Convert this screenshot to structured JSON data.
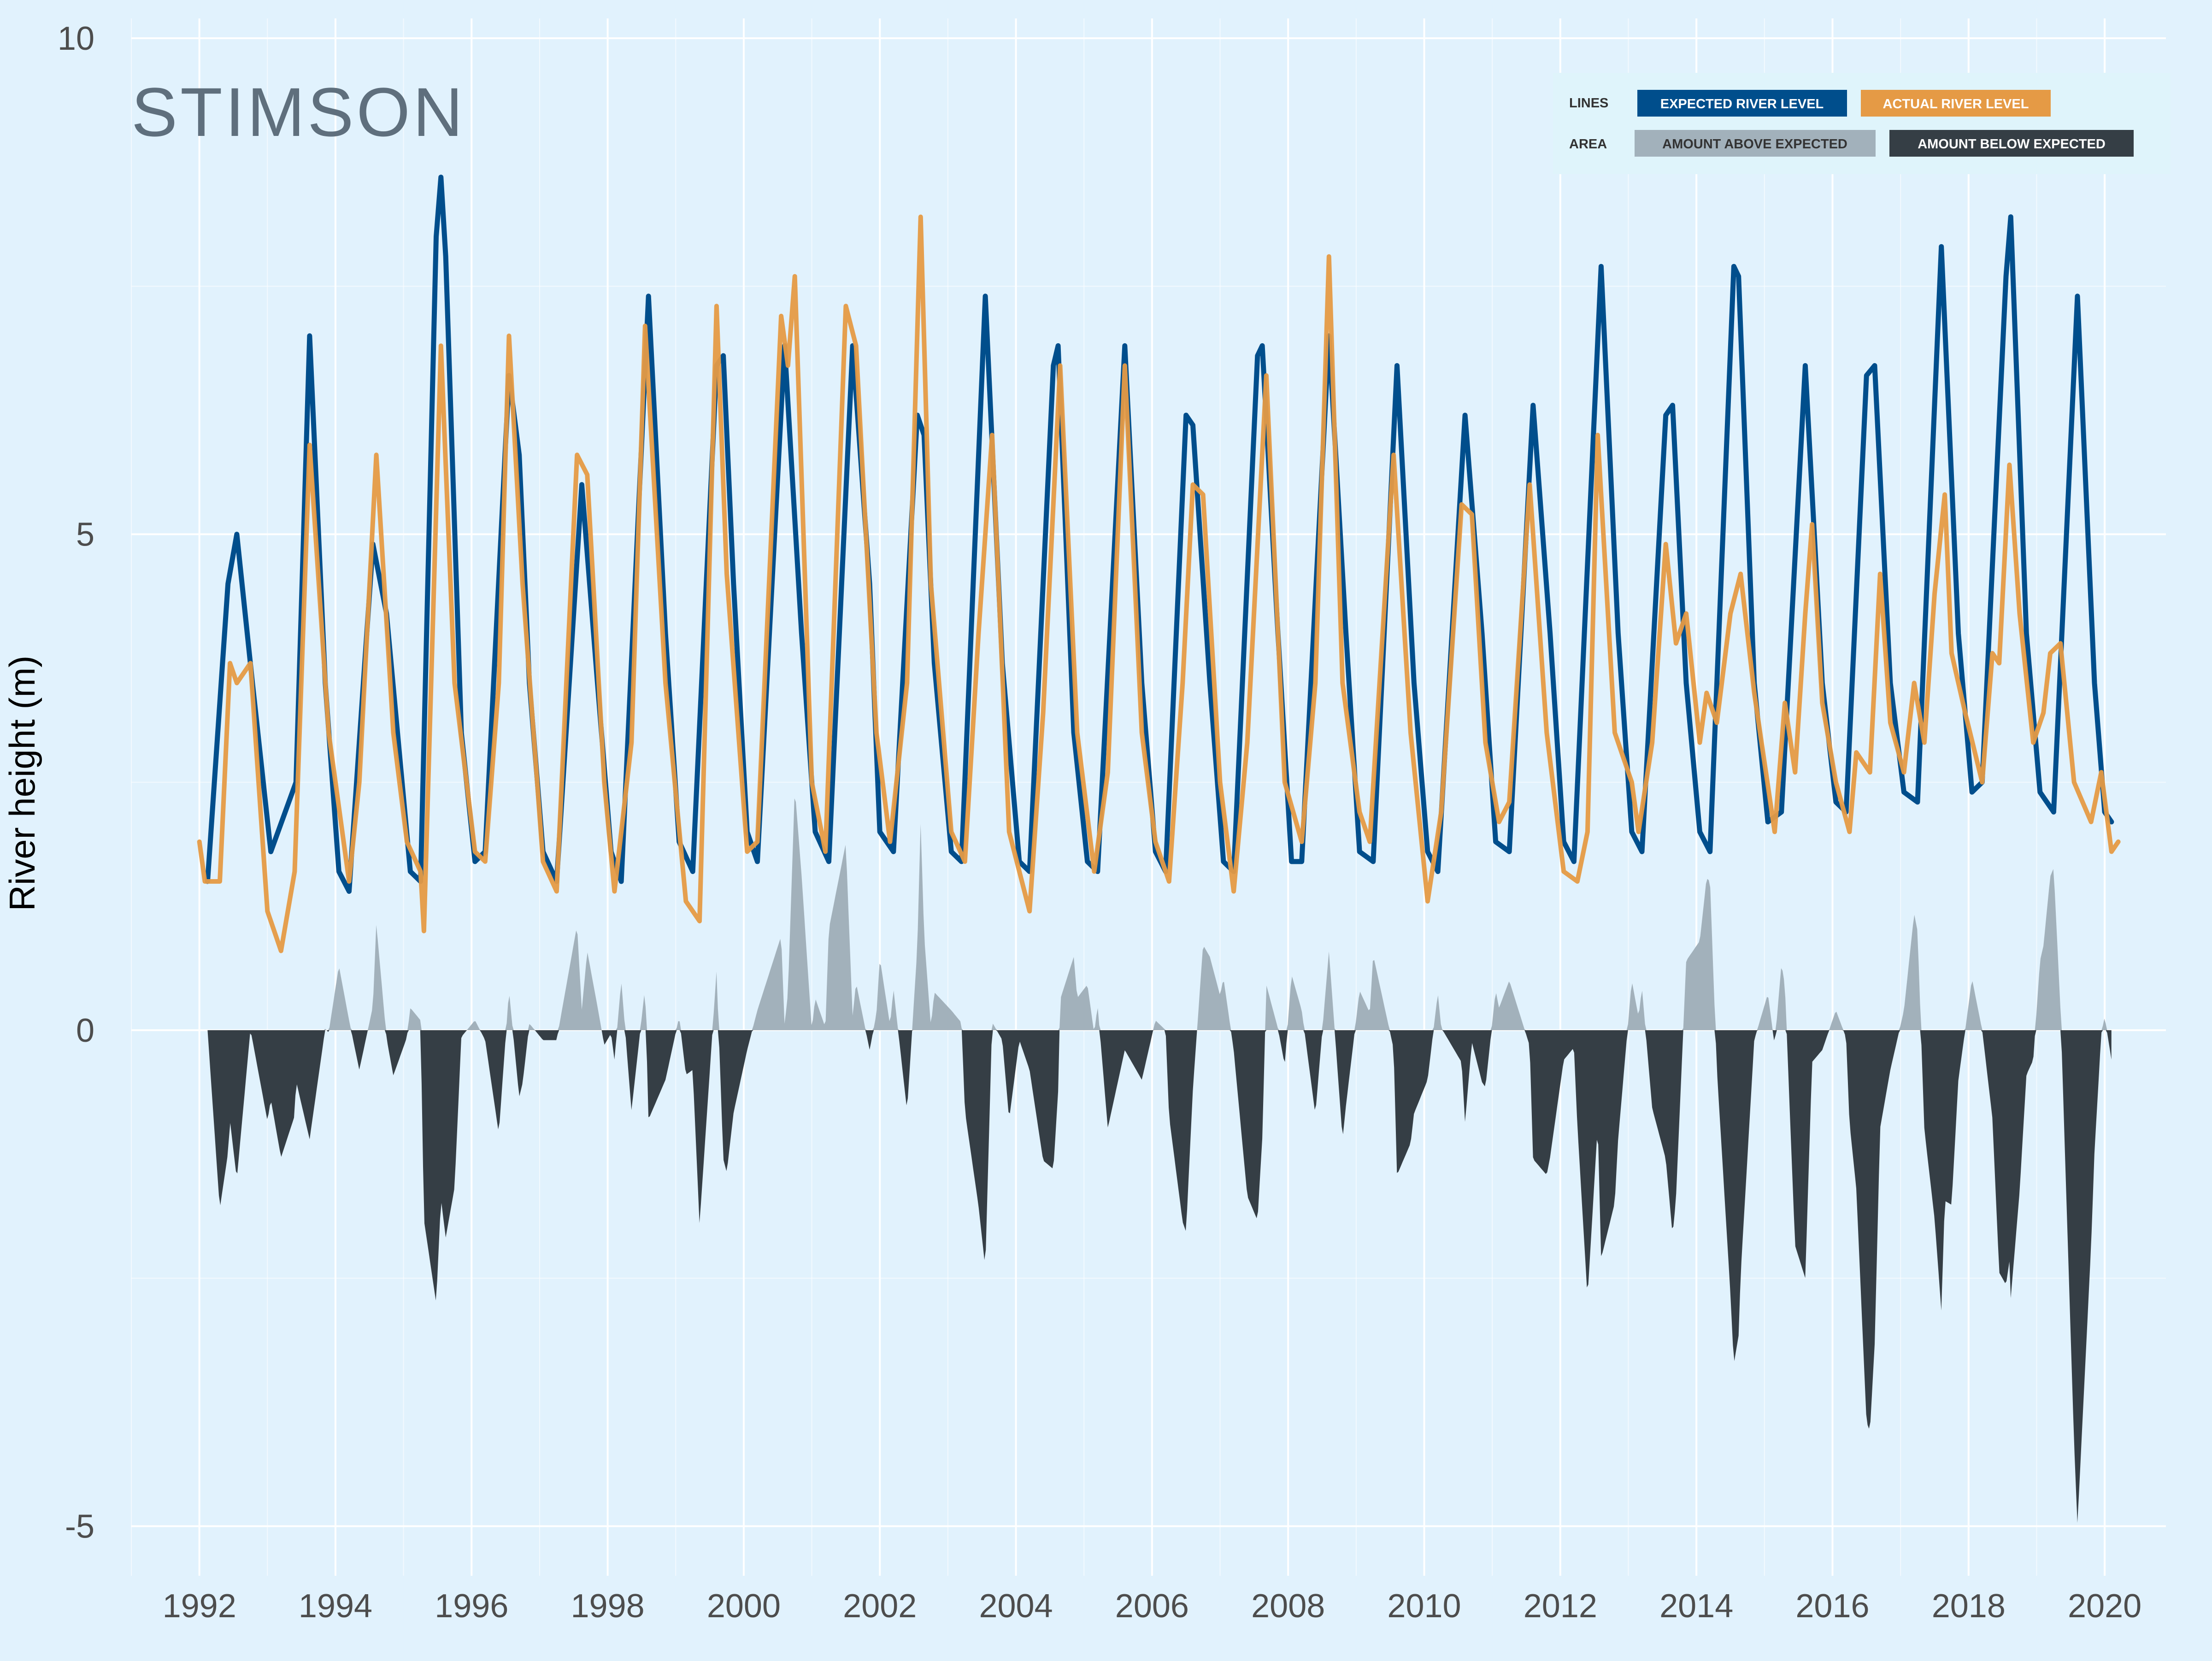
{
  "brand": {
    "logo_text": "STIMSON"
  },
  "colors": {
    "background": "#e1f2fd",
    "grid": "#ffffff",
    "expected": "#004e8c",
    "actual": "#e59a45",
    "above_area": "#a2b1bb",
    "below_area": "#353e45"
  },
  "legend": {
    "lines_heading": "LINES",
    "area_heading": "AREA",
    "expected_label": "EXPECTED RIVER LEVEL",
    "actual_label": "ACTUAL RIVER LEVEL",
    "above_label": "AMOUNT ABOVE EXPECTED",
    "below_label": "AMOUNT BELOW EXPECTED"
  },
  "chart_data": {
    "type": "line",
    "title": "",
    "xlabel": "",
    "ylabel": "River height (m)",
    "xlim": [
      1991.0,
      2020.9
    ],
    "ylim": [
      -5.5,
      10.2
    ],
    "x_ticks": [
      1992,
      1994,
      1996,
      1998,
      2000,
      2002,
      2004,
      2006,
      2008,
      2010,
      2012,
      2014,
      2016,
      2018,
      2020
    ],
    "y_ticks": [
      -5,
      0,
      5,
      10
    ],
    "grid": true,
    "legend_position": "top-right",
    "area_series": [
      {
        "name": "AMOUNT ABOVE EXPECTED",
        "meaning": "actual minus expected where positive"
      },
      {
        "name": "AMOUNT BELOW EXPECTED",
        "meaning": "actual minus expected where negative"
      }
    ],
    "series": [
      {
        "name": "EXPECTED RIVER LEVEL",
        "points": [
          [
            1992.12,
            1.5
          ],
          [
            1992.42,
            4.5
          ],
          [
            1992.55,
            5.0
          ],
          [
            1992.78,
            3.5
          ],
          [
            1993.05,
            1.8
          ],
          [
            1993.42,
            2.5
          ],
          [
            1993.62,
            7.0
          ],
          [
            1993.85,
            3.5
          ],
          [
            1994.05,
            1.6
          ],
          [
            1994.2,
            1.4
          ],
          [
            1994.55,
            4.9
          ],
          [
            1994.75,
            4.2
          ],
          [
            1995.1,
            1.6
          ],
          [
            1995.25,
            1.5
          ],
          [
            1995.48,
            8.0
          ],
          [
            1995.55,
            8.6
          ],
          [
            1995.62,
            7.8
          ],
          [
            1995.85,
            3.0
          ],
          [
            1996.05,
            1.7
          ],
          [
            1996.2,
            1.8
          ],
          [
            1996.55,
            6.6
          ],
          [
            1996.7,
            5.8
          ],
          [
            1996.85,
            3.5
          ],
          [
            1997.05,
            1.8
          ],
          [
            1997.25,
            1.5
          ],
          [
            1997.62,
            5.5
          ],
          [
            1997.85,
            3.5
          ],
          [
            1998.05,
            1.8
          ],
          [
            1998.2,
            1.5
          ],
          [
            1998.6,
            7.4
          ],
          [
            1998.85,
            4.0
          ],
          [
            1999.05,
            1.9
          ],
          [
            1999.25,
            1.6
          ],
          [
            1999.6,
            6.7
          ],
          [
            1999.7,
            6.8
          ],
          [
            1999.85,
            4.5
          ],
          [
            2000.05,
            2.0
          ],
          [
            2000.2,
            1.7
          ],
          [
            2000.6,
            6.9
          ],
          [
            2000.85,
            4.0
          ],
          [
            2001.05,
            2.0
          ],
          [
            2001.25,
            1.7
          ],
          [
            2001.6,
            6.9
          ],
          [
            2001.85,
            4.5
          ],
          [
            2002.0,
            2.0
          ],
          [
            2002.2,
            1.8
          ],
          [
            2002.55,
            6.2
          ],
          [
            2002.65,
            6.0
          ],
          [
            2002.8,
            3.7
          ],
          [
            2003.05,
            1.8
          ],
          [
            2003.2,
            1.7
          ],
          [
            2003.55,
            7.4
          ],
          [
            2003.8,
            3.7
          ],
          [
            2004.05,
            1.7
          ],
          [
            2004.2,
            1.6
          ],
          [
            2004.55,
            6.7
          ],
          [
            2004.62,
            6.9
          ],
          [
            2004.85,
            3.0
          ],
          [
            2005.05,
            1.7
          ],
          [
            2005.2,
            1.6
          ],
          [
            2005.6,
            6.9
          ],
          [
            2005.85,
            3.5
          ],
          [
            2006.05,
            1.8
          ],
          [
            2006.2,
            1.6
          ],
          [
            2006.5,
            6.2
          ],
          [
            2006.6,
            6.1
          ],
          [
            2006.85,
            3.5
          ],
          [
            2007.05,
            1.7
          ],
          [
            2007.2,
            1.6
          ],
          [
            2007.55,
            6.8
          ],
          [
            2007.62,
            6.9
          ],
          [
            2007.85,
            4.0
          ],
          [
            2008.05,
            1.7
          ],
          [
            2008.2,
            1.7
          ],
          [
            2008.6,
            7.0
          ],
          [
            2008.85,
            4.0
          ],
          [
            2009.05,
            1.8
          ],
          [
            2009.25,
            1.7
          ],
          [
            2009.6,
            6.7
          ],
          [
            2009.85,
            3.5
          ],
          [
            2010.05,
            1.8
          ],
          [
            2010.2,
            1.6
          ],
          [
            2010.6,
            6.2
          ],
          [
            2010.85,
            4.0
          ],
          [
            2011.05,
            1.9
          ],
          [
            2011.25,
            1.8
          ],
          [
            2011.6,
            6.3
          ],
          [
            2011.85,
            4.0
          ],
          [
            2012.05,
            1.9
          ],
          [
            2012.2,
            1.7
          ],
          [
            2012.6,
            7.7
          ],
          [
            2012.85,
            4.0
          ],
          [
            2013.05,
            2.0
          ],
          [
            2013.2,
            1.8
          ],
          [
            2013.55,
            6.2
          ],
          [
            2013.65,
            6.3
          ],
          [
            2013.85,
            3.5
          ],
          [
            2014.05,
            2.0
          ],
          [
            2014.2,
            1.8
          ],
          [
            2014.55,
            7.7
          ],
          [
            2014.62,
            7.6
          ],
          [
            2014.85,
            3.5
          ],
          [
            2015.05,
            2.1
          ],
          [
            2015.25,
            2.2
          ],
          [
            2015.6,
            6.7
          ],
          [
            2015.85,
            3.5
          ],
          [
            2016.05,
            2.3
          ],
          [
            2016.2,
            2.2
          ],
          [
            2016.5,
            6.6
          ],
          [
            2016.62,
            6.7
          ],
          [
            2016.85,
            3.5
          ],
          [
            2017.05,
            2.4
          ],
          [
            2017.25,
            2.3
          ],
          [
            2017.6,
            7.9
          ],
          [
            2017.85,
            4.0
          ],
          [
            2018.05,
            2.4
          ],
          [
            2018.2,
            2.5
          ],
          [
            2018.55,
            7.6
          ],
          [
            2018.62,
            8.2
          ],
          [
            2018.85,
            4.0
          ],
          [
            2019.05,
            2.4
          ],
          [
            2019.25,
            2.2
          ],
          [
            2019.6,
            7.4
          ],
          [
            2019.85,
            3.5
          ],
          [
            2020.0,
            2.2
          ],
          [
            2020.1,
            2.1
          ]
        ]
      },
      {
        "name": "ACTUAL RIVER LEVEL",
        "points": [
          [
            1992.0,
            1.9
          ],
          [
            1992.08,
            1.5
          ],
          [
            1992.3,
            1.5
          ],
          [
            1992.45,
            3.7
          ],
          [
            1992.55,
            3.5
          ],
          [
            1992.75,
            3.7
          ],
          [
            1993.0,
            1.2
          ],
          [
            1993.2,
            0.8
          ],
          [
            1993.4,
            1.6
          ],
          [
            1993.62,
            5.9
          ],
          [
            1993.9,
            3.0
          ],
          [
            1994.2,
            1.5
          ],
          [
            1994.35,
            2.5
          ],
          [
            1994.6,
            5.8
          ],
          [
            1994.85,
            3.0
          ],
          [
            1995.05,
            1.9
          ],
          [
            1995.25,
            1.6
          ],
          [
            1995.3,
            1.0
          ],
          [
            1995.55,
            6.9
          ],
          [
            1995.75,
            3.5
          ],
          [
            1996.05,
            1.8
          ],
          [
            1996.2,
            1.7
          ],
          [
            1996.4,
            3.5
          ],
          [
            1996.55,
            7.0
          ],
          [
            1996.75,
            4.5
          ],
          [
            1997.05,
            1.7
          ],
          [
            1997.25,
            1.4
          ],
          [
            1997.55,
            5.8
          ],
          [
            1997.7,
            5.6
          ],
          [
            1997.95,
            2.5
          ],
          [
            1998.1,
            1.4
          ],
          [
            1998.35,
            2.9
          ],
          [
            1998.55,
            7.1
          ],
          [
            1998.85,
            3.5
          ],
          [
            1999.15,
            1.3
          ],
          [
            1999.35,
            1.1
          ],
          [
            1999.6,
            7.3
          ],
          [
            1999.75,
            4.6
          ],
          [
            2000.05,
            1.8
          ],
          [
            2000.2,
            1.9
          ],
          [
            2000.55,
            7.2
          ],
          [
            2000.65,
            6.7
          ],
          [
            2000.75,
            7.6
          ],
          [
            2001.0,
            2.5
          ],
          [
            2001.2,
            1.8
          ],
          [
            2001.5,
            7.3
          ],
          [
            2001.65,
            6.9
          ],
          [
            2001.95,
            3.0
          ],
          [
            2002.15,
            1.9
          ],
          [
            2002.4,
            3.5
          ],
          [
            2002.6,
            8.2
          ],
          [
            2002.75,
            4.5
          ],
          [
            2003.05,
            2.0
          ],
          [
            2003.25,
            1.7
          ],
          [
            2003.45,
            4.0
          ],
          [
            2003.65,
            6.0
          ],
          [
            2003.9,
            2.0
          ],
          [
            2004.2,
            1.2
          ],
          [
            2004.4,
            3.2
          ],
          [
            2004.65,
            6.7
          ],
          [
            2004.9,
            3.0
          ],
          [
            2005.15,
            1.6
          ],
          [
            2005.35,
            2.6
          ],
          [
            2005.6,
            6.7
          ],
          [
            2005.85,
            3.0
          ],
          [
            2006.05,
            1.9
          ],
          [
            2006.25,
            1.5
          ],
          [
            2006.45,
            3.5
          ],
          [
            2006.6,
            5.5
          ],
          [
            2006.75,
            5.4
          ],
          [
            2007.0,
            2.5
          ],
          [
            2007.2,
            1.4
          ],
          [
            2007.4,
            2.9
          ],
          [
            2007.68,
            6.6
          ],
          [
            2007.95,
            2.5
          ],
          [
            2008.2,
            1.9
          ],
          [
            2008.4,
            3.5
          ],
          [
            2008.6,
            7.8
          ],
          [
            2008.8,
            3.5
          ],
          [
            2009.05,
            2.2
          ],
          [
            2009.2,
            1.9
          ],
          [
            2009.55,
            5.8
          ],
          [
            2009.8,
            3.0
          ],
          [
            2010.05,
            1.3
          ],
          [
            2010.25,
            2.2
          ],
          [
            2010.55,
            5.3
          ],
          [
            2010.7,
            5.2
          ],
          [
            2010.9,
            2.9
          ],
          [
            2011.1,
            2.1
          ],
          [
            2011.25,
            2.3
          ],
          [
            2011.55,
            5.5
          ],
          [
            2011.8,
            3.0
          ],
          [
            2012.05,
            1.6
          ],
          [
            2012.25,
            1.5
          ],
          [
            2012.4,
            2.0
          ],
          [
            2012.55,
            6.0
          ],
          [
            2012.8,
            3.0
          ],
          [
            2013.05,
            2.5
          ],
          [
            2013.15,
            2.0
          ],
          [
            2013.35,
            2.9
          ],
          [
            2013.55,
            4.9
          ],
          [
            2013.7,
            3.9
          ],
          [
            2013.85,
            4.2
          ],
          [
            2014.05,
            2.9
          ],
          [
            2014.15,
            3.4
          ],
          [
            2014.3,
            3.1
          ],
          [
            2014.5,
            4.2
          ],
          [
            2014.65,
            4.6
          ],
          [
            2014.85,
            3.4
          ],
          [
            2015.15,
            2.0
          ],
          [
            2015.3,
            3.3
          ],
          [
            2015.45,
            2.6
          ],
          [
            2015.6,
            4.2
          ],
          [
            2015.7,
            5.1
          ],
          [
            2015.85,
            3.3
          ],
          [
            2016.05,
            2.5
          ],
          [
            2016.25,
            2.0
          ],
          [
            2016.35,
            2.8
          ],
          [
            2016.55,
            2.6
          ],
          [
            2016.7,
            4.6
          ],
          [
            2016.85,
            3.1
          ],
          [
            2017.05,
            2.6
          ],
          [
            2017.2,
            3.5
          ],
          [
            2017.35,
            2.9
          ],
          [
            2017.5,
            4.4
          ],
          [
            2017.65,
            5.4
          ],
          [
            2017.75,
            3.8
          ],
          [
            2017.95,
            3.2
          ],
          [
            2018.2,
            2.5
          ],
          [
            2018.35,
            3.8
          ],
          [
            2018.45,
            3.7
          ],
          [
            2018.6,
            5.7
          ],
          [
            2018.75,
            4.2
          ],
          [
            2018.95,
            2.9
          ],
          [
            2019.1,
            3.2
          ],
          [
            2019.2,
            3.8
          ],
          [
            2019.35,
            3.9
          ],
          [
            2019.55,
            2.5
          ],
          [
            2019.8,
            2.1
          ],
          [
            2019.95,
            2.6
          ],
          [
            2020.1,
            1.8
          ],
          [
            2020.2,
            1.9
          ]
        ]
      }
    ]
  }
}
